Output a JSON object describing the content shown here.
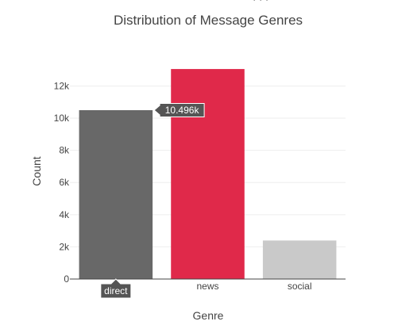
{
  "chart_data": {
    "type": "bar",
    "title": "Distribution of Message Genres",
    "xlabel": "Genre",
    "ylabel": "Count",
    "categories": [
      "direct",
      "news",
      "social"
    ],
    "values": [
      10496,
      13054,
      2396
    ],
    "colors": [
      "#686868",
      "#e0294a",
      "#c9c9c9"
    ],
    "ylim": [
      0,
      13600
    ],
    "yticks": [
      0,
      2000,
      4000,
      6000,
      8000,
      10000,
      12000
    ],
    "ytick_labels": [
      "0",
      "2k",
      "4k",
      "6k",
      "8k",
      "10k",
      "12k"
    ],
    "grid": true,
    "hover": {
      "category": "direct",
      "value_label": "10.496k",
      "x_label": "direct"
    }
  },
  "colors": {
    "label_bg": "#555555",
    "background": "#ffffff"
  }
}
